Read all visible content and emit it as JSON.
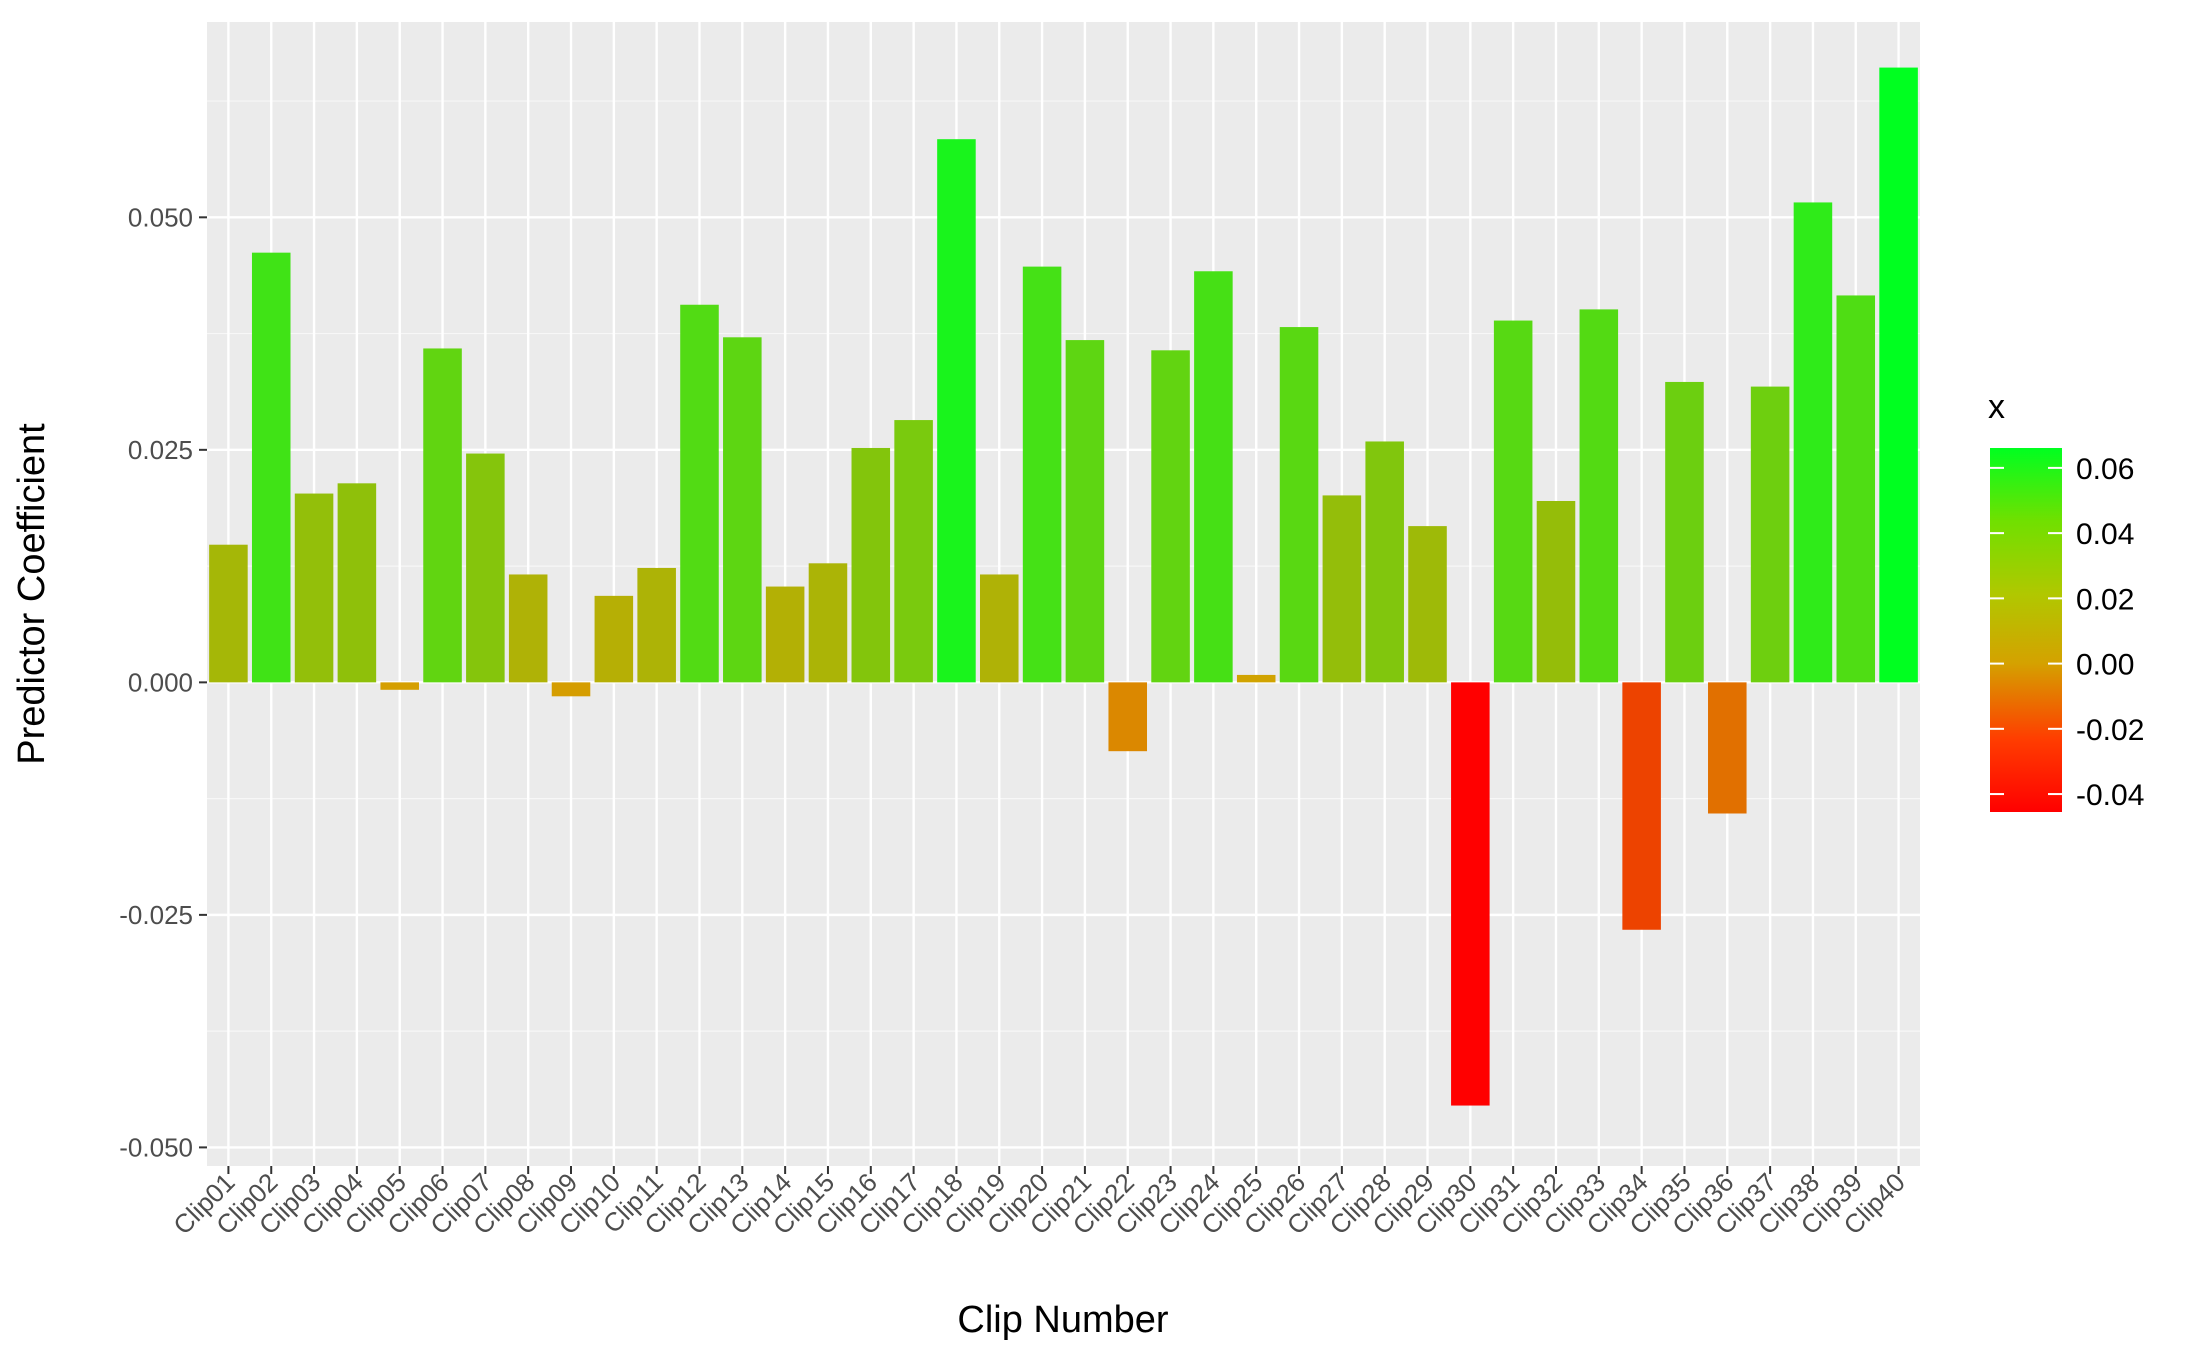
{
  "chart_data": {
    "type": "bar",
    "xlabel": "Clip Number",
    "ylabel": "Predictor Coefficient",
    "ylim": [
      -0.052,
      0.071
    ],
    "y_ticks": [
      "-0.050",
      "-0.025",
      "0.000",
      "0.025",
      "0.050"
    ],
    "y_tick_values": [
      -0.05,
      -0.025,
      0,
      0.025,
      0.05
    ],
    "grid": true,
    "categories": [
      "Clip01",
      "Clip02",
      "Clip03",
      "Clip04",
      "Clip05",
      "Clip06",
      "Clip07",
      "Clip08",
      "Clip09",
      "Clip10",
      "Clip11",
      "Clip12",
      "Clip13",
      "Clip14",
      "Clip15",
      "Clip16",
      "Clip17",
      "Clip18",
      "Clip19",
      "Clip20",
      "Clip21",
      "Clip22",
      "Clip23",
      "Clip24",
      "Clip25",
      "Clip26",
      "Clip27",
      "Clip28",
      "Clip29",
      "Clip30",
      "Clip31",
      "Clip32",
      "Clip33",
      "Clip34",
      "Clip35",
      "Clip36",
      "Clip37",
      "Clip38",
      "Clip39",
      "Clip40"
    ],
    "values": [
      0.0148,
      0.0462,
      0.0203,
      0.0214,
      -0.0008,
      0.0359,
      0.0246,
      0.0116,
      -0.0015,
      0.0093,
      0.0123,
      0.0406,
      0.0371,
      0.0103,
      0.0128,
      0.0252,
      0.0282,
      0.0584,
      0.0116,
      0.0447,
      0.0368,
      -0.0074,
      0.0357,
      0.0442,
      0.0008,
      0.0382,
      0.0201,
      0.0259,
      0.0168,
      -0.0455,
      0.0389,
      0.0195,
      0.0401,
      -0.0266,
      0.0323,
      -0.0141,
      0.0318,
      0.0516,
      0.0416,
      0.0661
    ],
    "legend": {
      "title": "x",
      "position": "right",
      "labels": [
        "0.06",
        "0.04",
        "0.02",
        "0.00",
        "-0.02",
        "-0.04"
      ],
      "label_values": [
        0.06,
        0.04,
        0.02,
        0.0,
        -0.02,
        -0.04
      ],
      "range": [
        -0.0455,
        0.0661
      ]
    },
    "colors": {
      "low": "#ff0000",
      "mid": "#d4a200",
      "high": "#00ff20",
      "panel": "#ebebeb",
      "grid_major": "#ffffff",
      "tick_text": "#4d4d4d",
      "tick_mark": "#333333"
    }
  }
}
